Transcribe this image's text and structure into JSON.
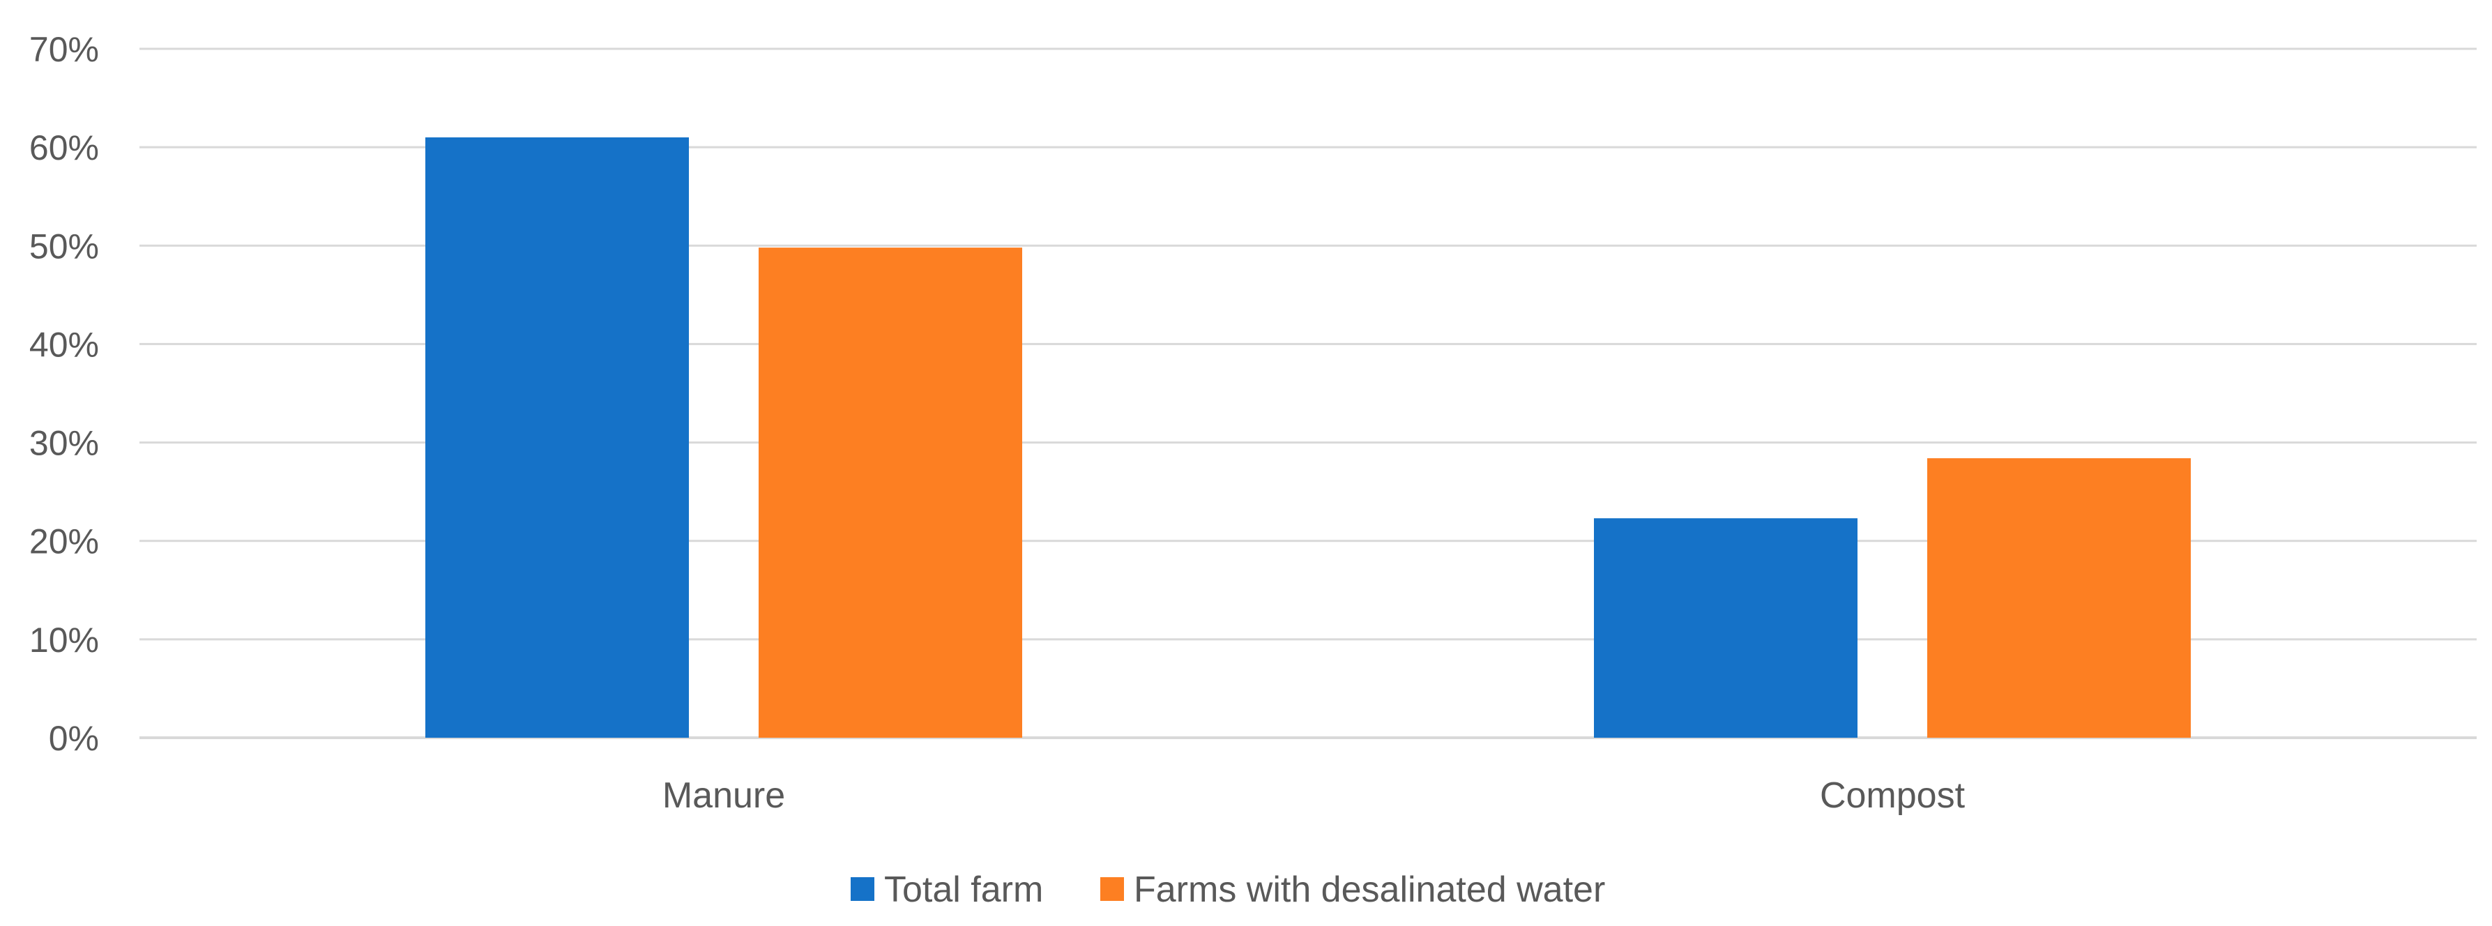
{
  "chart_data": {
    "type": "bar",
    "title": "",
    "xlabel": "",
    "ylabel": "",
    "categories": [
      "Manure",
      "Compost"
    ],
    "series": [
      {
        "name": "Total farm",
        "values": [
          61,
          22.3
        ],
        "color": "#1572C8"
      },
      {
        "name": "Farms with desalinated water",
        "values": [
          49.8,
          28.4
        ],
        "color": "#FD7F22"
      }
    ],
    "ylim": [
      0,
      70
    ],
    "yticks": [
      0,
      10,
      20,
      30,
      40,
      50,
      60,
      70
    ],
    "ytick_labels": [
      "0%",
      "10%",
      "20%",
      "30%",
      "40%",
      "50%",
      "60%",
      "70%"
    ],
    "grid": true,
    "legend_position": "bottom-center",
    "colors": {
      "gridline": "#D9D9D9",
      "text": "#595959"
    }
  }
}
